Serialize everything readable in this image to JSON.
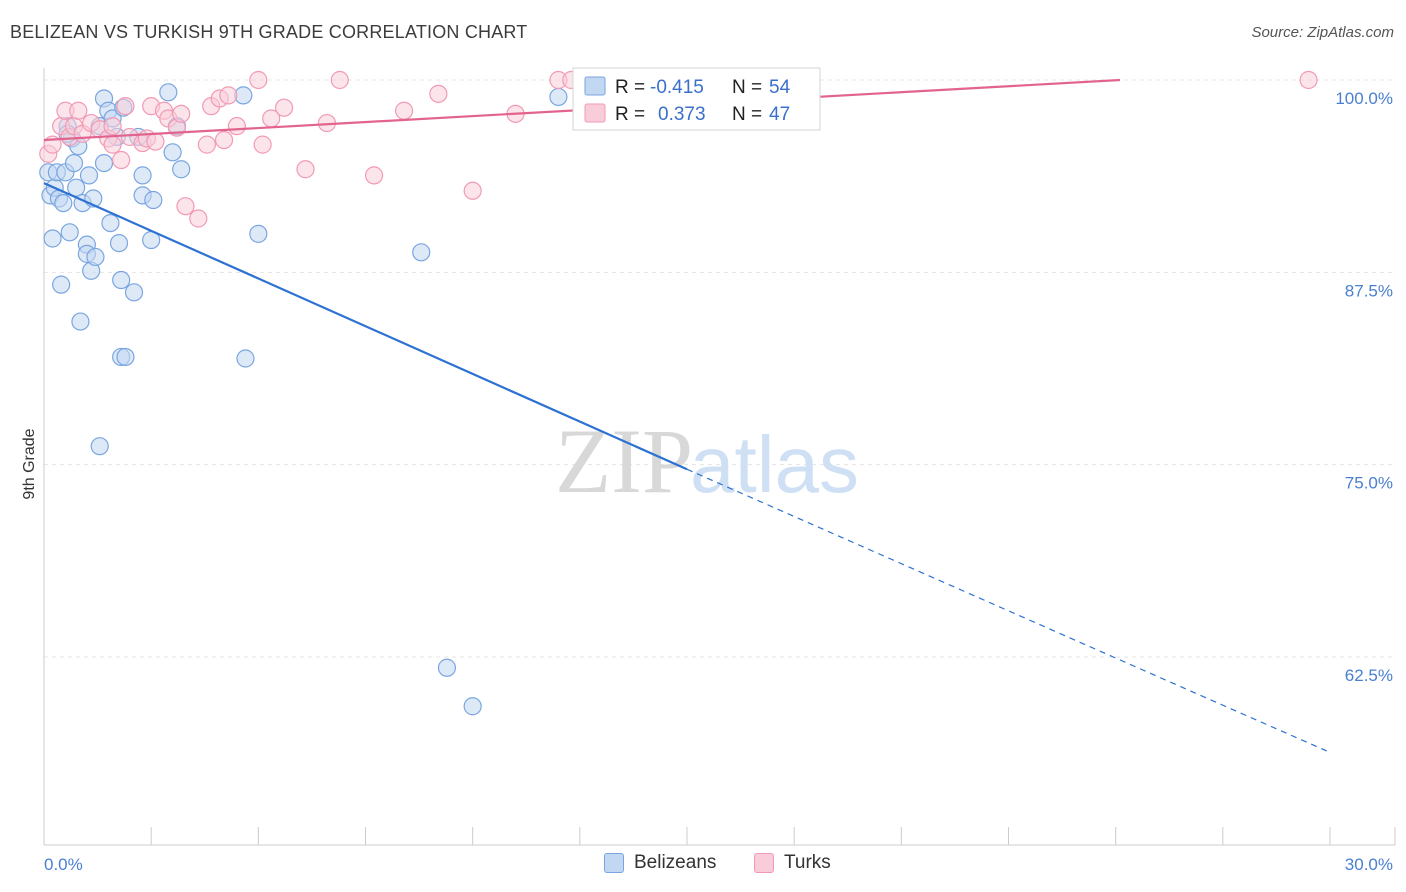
{
  "header": {
    "title": "BELIZEAN VS TURKISH 9TH GRADE CORRELATION CHART",
    "source": "Source: ZipAtlas.com"
  },
  "watermark": {
    "part1": "ZIP",
    "part2": "atlas"
  },
  "legend": {
    "rows": [
      {
        "r_label": "R =",
        "r_value": "-0.415",
        "n_label": "N =",
        "n_value": "54"
      },
      {
        "r_label": "R =",
        "r_value": "0.373",
        "n_label": "N =",
        "n_value": "47"
      }
    ]
  },
  "bottom_legend": {
    "items": [
      "Belizeans",
      "Turks"
    ]
  },
  "chart_data": {
    "type": "scatter",
    "title": "BELIZEAN VS TURKISH 9TH GRADE CORRELATION CHART",
    "xlabel": "",
    "ylabel": "9th Grade",
    "xlim": [
      0,
      30
    ],
    "ylim": [
      51.3,
      101
    ],
    "x_tick_labels": [
      {
        "value": 0,
        "label": "0.0%"
      },
      {
        "value": 30,
        "label": "30.0%"
      }
    ],
    "y_tick_labels": [
      {
        "value": 100,
        "label": "100.0%"
      },
      {
        "value": 87.5,
        "label": "87.5%"
      },
      {
        "value": 75,
        "label": "75.0%"
      },
      {
        "value": 62.5,
        "label": "62.5%"
      }
    ],
    "grid": true,
    "legend_position": "top-center",
    "series": [
      {
        "name": "Belizeans",
        "color": "#7aa6e0",
        "fill": "#c2d7f2",
        "line_color": "#2d72d2",
        "stats": {
          "R": -0.415,
          "N": 54
        },
        "trend": {
          "x_start": 0,
          "y_start": 93.3,
          "x_solid_end": 15,
          "y_solid_end": 74.7,
          "x_end": 30,
          "y_end": 56.3
        },
        "points": [
          [
            0.1,
            94
          ],
          [
            0.15,
            92.5
          ],
          [
            0.2,
            89.7
          ],
          [
            0.25,
            93
          ],
          [
            0.3,
            94
          ],
          [
            0.35,
            92.3
          ],
          [
            0.4,
            86.7
          ],
          [
            0.45,
            92
          ],
          [
            0.5,
            94
          ],
          [
            0.55,
            97
          ],
          [
            0.6,
            90.1
          ],
          [
            0.65,
            96.2
          ],
          [
            0.7,
            94.6
          ],
          [
            0.75,
            93
          ],
          [
            0.8,
            95.7
          ],
          [
            0.85,
            84.3
          ],
          [
            0.9,
            92
          ],
          [
            1.0,
            89.3
          ],
          [
            1.0,
            88.7
          ],
          [
            1.05,
            93.8
          ],
          [
            1.1,
            87.6
          ],
          [
            1.15,
            92.3
          ],
          [
            1.2,
            88.5
          ],
          [
            1.3,
            97
          ],
          [
            1.4,
            94.6
          ],
          [
            1.4,
            98.8
          ],
          [
            1.5,
            98
          ],
          [
            1.55,
            90.7
          ],
          [
            1.6,
            97.5
          ],
          [
            1.7,
            96.3
          ],
          [
            1.75,
            89.4
          ],
          [
            1.8,
            87
          ],
          [
            1.8,
            82
          ],
          [
            1.85,
            98.2
          ],
          [
            1.9,
            82
          ],
          [
            2.1,
            86.2
          ],
          [
            2.2,
            96.3
          ],
          [
            2.3,
            92.5
          ],
          [
            2.3,
            93.8
          ],
          [
            2.5,
            89.6
          ],
          [
            2.55,
            92.2
          ],
          [
            2.9,
            99.2
          ],
          [
            3.0,
            95.3
          ],
          [
            3.1,
            97
          ],
          [
            3.2,
            94.2
          ],
          [
            4.65,
            99
          ],
          [
            5.0,
            90
          ],
          [
            4.7,
            81.9
          ],
          [
            1.3,
            76.2
          ],
          [
            8.8,
            88.8
          ],
          [
            12.0,
            98.9
          ],
          [
            9.4,
            61.8
          ],
          [
            10.0,
            59.3
          ],
          [
            0.55,
            96.5
          ]
        ]
      },
      {
        "name": "Turks",
        "color": "#f29ab5",
        "fill": "#f8cdd9",
        "line_color": "#e2648e",
        "stats": {
          "R": 0.373,
          "N": 47
        },
        "trend": {
          "x_start": 0,
          "y_start": 96.1,
          "x_end": 25.1,
          "y_end": 100
        },
        "points": [
          [
            0.1,
            95.2
          ],
          [
            0.2,
            95.8
          ],
          [
            0.4,
            97
          ],
          [
            0.5,
            98
          ],
          [
            0.6,
            96.3
          ],
          [
            0.7,
            97
          ],
          [
            0.8,
            98
          ],
          [
            0.9,
            96.5
          ],
          [
            1.1,
            97.2
          ],
          [
            1.3,
            96.8
          ],
          [
            1.5,
            96.2
          ],
          [
            1.6,
            95.8
          ],
          [
            1.8,
            94.8
          ],
          [
            1.9,
            98.3
          ],
          [
            2.0,
            96.3
          ],
          [
            2.3,
            95.9
          ],
          [
            2.4,
            96.2
          ],
          [
            2.5,
            98.3
          ],
          [
            2.6,
            96
          ],
          [
            2.8,
            98
          ],
          [
            2.9,
            97.5
          ],
          [
            3.1,
            96.9
          ],
          [
            3.2,
            97.8
          ],
          [
            3.3,
            91.8
          ],
          [
            3.6,
            91
          ],
          [
            3.8,
            95.8
          ],
          [
            3.9,
            98.3
          ],
          [
            4.1,
            98.8
          ],
          [
            4.2,
            96.1
          ],
          [
            4.3,
            99
          ],
          [
            4.5,
            97
          ],
          [
            5.0,
            100
          ],
          [
            5.1,
            95.8
          ],
          [
            5.3,
            97.5
          ],
          [
            5.6,
            98.2
          ],
          [
            6.1,
            94.2
          ],
          [
            6.6,
            97.2
          ],
          [
            6.9,
            100
          ],
          [
            7.7,
            93.8
          ],
          [
            8.4,
            98
          ],
          [
            9.2,
            99.1
          ],
          [
            10.0,
            92.8
          ],
          [
            11.0,
            97.8
          ],
          [
            12.0,
            100
          ],
          [
            12.3,
            100
          ],
          [
            29.5,
            100
          ],
          [
            1.6,
            97
          ]
        ]
      }
    ]
  }
}
